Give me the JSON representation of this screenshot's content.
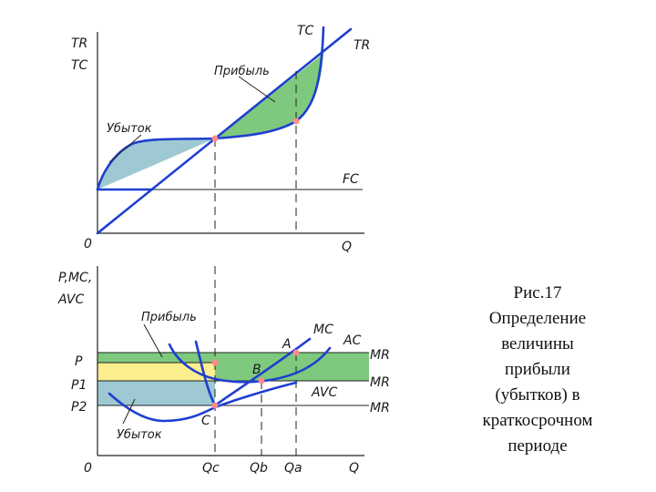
{
  "top_chart": {
    "y_axis_label_1": "TR",
    "y_axis_label_2": "TC",
    "origin": "0",
    "x_axis_label": "Q",
    "tc_label": "TC",
    "tr_label": "TR",
    "fc_label": "FC",
    "profit_label": "Прибыль",
    "loss_label": "Убыток"
  },
  "bottom_chart": {
    "y_axis_label_1": "P,MC,",
    "y_axis_label_2": "AVC",
    "origin": "0",
    "x_axis_label": "Q",
    "price_labels": [
      "P",
      "P1",
      "P2"
    ],
    "mr_labels": [
      "MR",
      "MR",
      "MR"
    ],
    "mc_label": "MC",
    "ac_label": "AC",
    "avc_label": "AVC",
    "point_a": "A",
    "point_b": "B",
    "point_c": "C",
    "q_labels": [
      "Qc",
      "Qb",
      "Qa"
    ],
    "profit_label": "Прибыль",
    "loss_label": "Убыток"
  },
  "colors": {
    "curve": "#1f3fd0",
    "profit_fill": "#7ec97e",
    "loss_fill": "#9ec9d3",
    "breakeven_fill": "#fbee8e",
    "point": "#ff8b8b"
  },
  "caption": {
    "line1": "Рис.17",
    "line2": "Определение",
    "line3": "величины",
    "line4": "прибыли",
    "line5": "(убытков) в",
    "line6": "краткосрочном",
    "line7": "периоде"
  }
}
